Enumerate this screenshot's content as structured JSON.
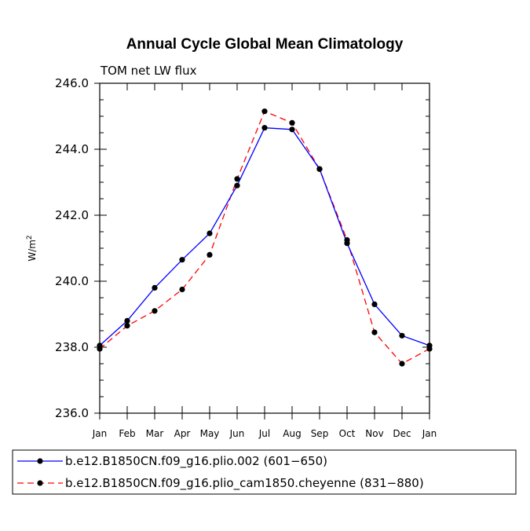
{
  "chart_data": {
    "type": "line",
    "title": "Annual Cycle Global Mean Climatology",
    "subtitle": "TOM net LW flux",
    "xlabel": "",
    "ylabel": "W/m",
    "ylabel_superscript": "2",
    "categories": [
      "Jan",
      "Feb",
      "Mar",
      "Apr",
      "May",
      "Jun",
      "Jul",
      "Aug",
      "Sep",
      "Oct",
      "Nov",
      "Dec",
      "Jan"
    ],
    "ylim": [
      236.0,
      246.0
    ],
    "yticks": [
      236.0,
      238.0,
      240.0,
      242.0,
      244.0,
      246.0
    ],
    "ytick_labels": [
      "236.0",
      "238.0",
      "240.0",
      "242.0",
      "244.0",
      "246.0"
    ],
    "grid": false,
    "legend_position": "bottom",
    "series": [
      {
        "name": "b.e12.B1850CN.f09_g16.plio.002 (601−650)",
        "color": "#0000ff",
        "style": "solid",
        "marker": "filled-circle",
        "values": [
          238.05,
          238.8,
          239.8,
          240.65,
          241.45,
          242.9,
          244.65,
          244.6,
          243.4,
          241.15,
          239.3,
          238.35,
          238.05
        ]
      },
      {
        "name": "b.e12.B1850CN.f09_g16.plio_cam1850.cheyenne (831−880)",
        "color": "#ff0000",
        "style": "dashed",
        "marker": "filled-circle",
        "values": [
          237.95,
          238.65,
          239.1,
          239.75,
          240.8,
          243.1,
          245.15,
          244.8,
          243.4,
          241.25,
          238.45,
          237.5,
          237.95
        ]
      }
    ]
  }
}
